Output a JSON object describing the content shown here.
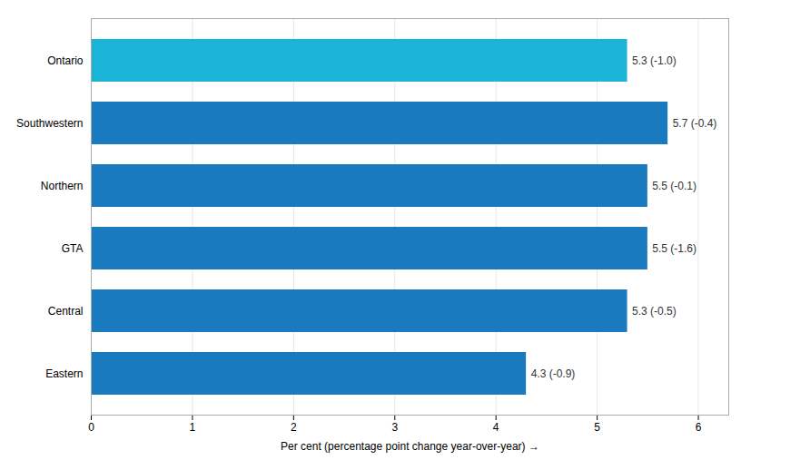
{
  "chart_data": {
    "type": "bar",
    "orientation": "horizontal",
    "categories": [
      "Ontario",
      "Southwestern",
      "Northern",
      "GTA",
      "Central",
      "Eastern"
    ],
    "values": [
      5.3,
      5.7,
      5.5,
      5.5,
      5.3,
      4.3
    ],
    "value_labels": [
      "5.3 (-1.0)",
      "5.7 (-0.4)",
      "5.5 (-0.1)",
      "5.5 (-1.6)",
      "5.3 (-0.5)",
      "4.3 (-0.9)"
    ],
    "colors": [
      "#1ab4d7",
      "#1a7abf",
      "#1a7abf",
      "#1a7abf",
      "#1a7abf",
      "#1a7abf"
    ],
    "xlabel": "Per cent (percentage point change year-over-year)",
    "xlim": [
      0,
      6.3
    ],
    "xticks": [
      0,
      1,
      2,
      3,
      4,
      5,
      6
    ],
    "grid": true,
    "data_labels": true
  }
}
